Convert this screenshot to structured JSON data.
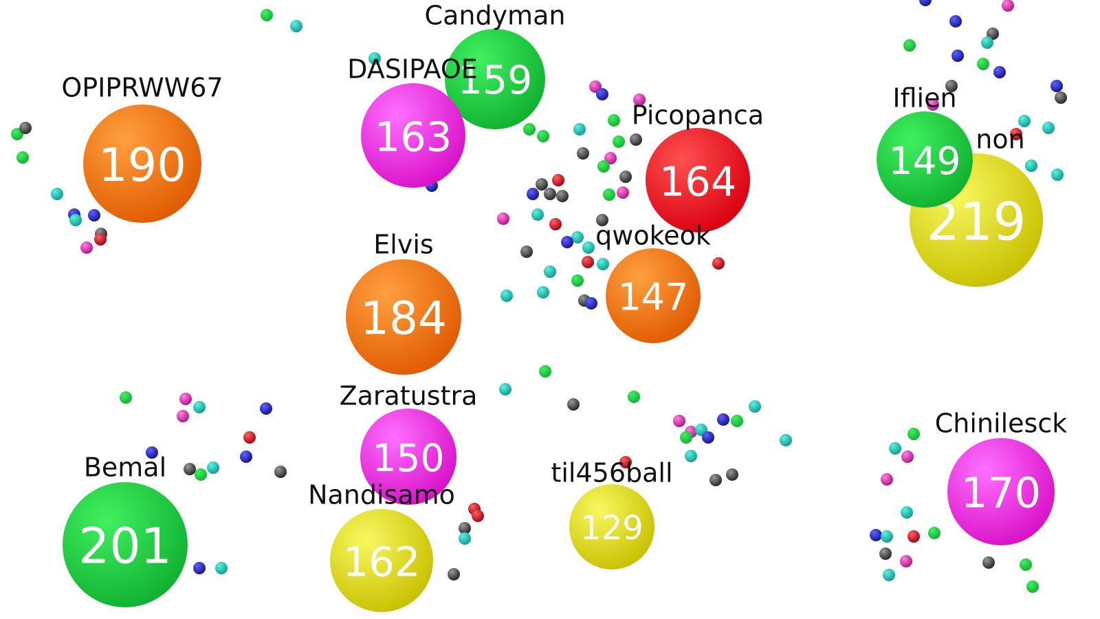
{
  "players": [
    {
      "name": "Candyman",
      "score": "159"
    },
    {
      "name": "DASIPAOE",
      "score": "163"
    },
    {
      "name": "OPIPRWW67",
      "score": "190"
    },
    {
      "name": "Picopanca",
      "score": "164"
    },
    {
      "name": "non",
      "score": "219"
    },
    {
      "name": "Iflien",
      "score": "149"
    },
    {
      "name": "Elvis",
      "score": "184"
    },
    {
      "name": "qwokeok",
      "score": "147"
    },
    {
      "name": "Zaratustra",
      "score": "150"
    },
    {
      "name": "Nandisamo",
      "score": "162"
    },
    {
      "name": "Bemal",
      "score": "201"
    },
    {
      "name": "til456ball",
      "score": "129"
    },
    {
      "name": "Chinilesck",
      "score": "170"
    }
  ]
}
